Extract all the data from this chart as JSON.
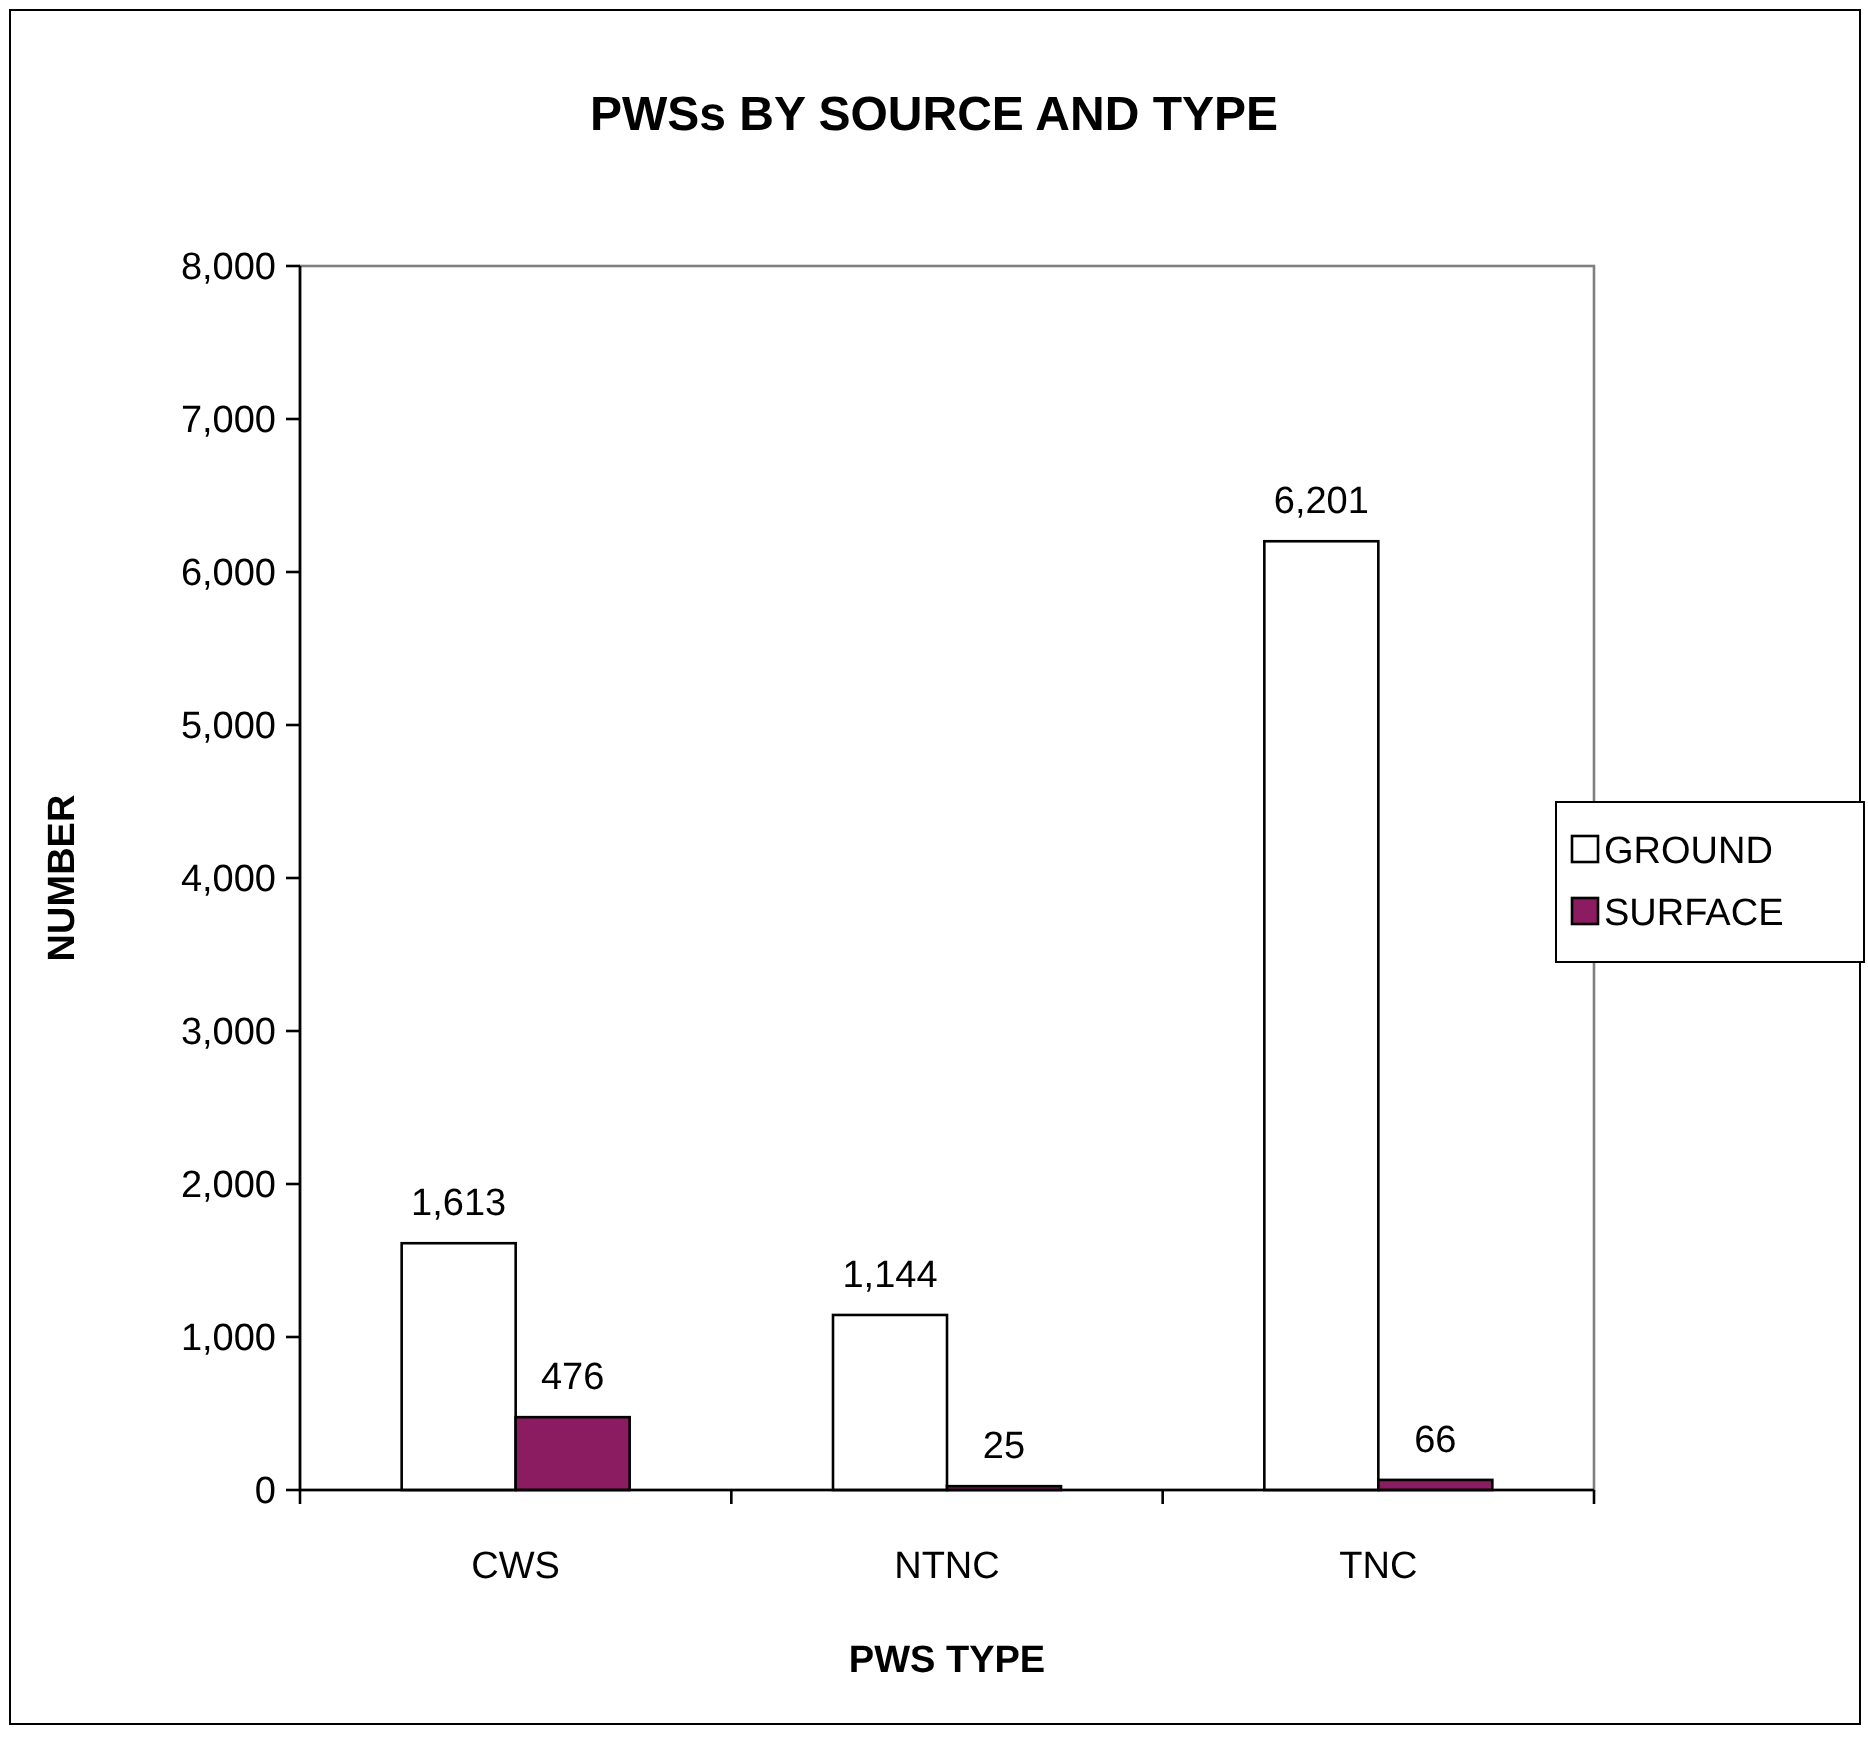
{
  "chart_data": {
    "type": "bar",
    "title": "PWSs BY SOURCE AND TYPE",
    "xlabel": "PWS TYPE",
    "ylabel": "NUMBER",
    "categories": [
      "CWS",
      "NTNC",
      "TNC"
    ],
    "series": [
      {
        "name": "GROUND",
        "color": "#ffffff",
        "values": [
          1613,
          1144,
          6201
        ]
      },
      {
        "name": "SURFACE",
        "color": "#8b1c62",
        "values": [
          476,
          25,
          66
        ]
      }
    ],
    "ylim": [
      0,
      8000
    ],
    "yticks": [
      {
        "value": 0,
        "label": "0"
      },
      {
        "value": 1000,
        "label": "1,000"
      },
      {
        "value": 2000,
        "label": "2,000"
      },
      {
        "value": 3000,
        "label": "3,000"
      },
      {
        "value": 4000,
        "label": "4,000"
      },
      {
        "value": 5000,
        "label": "5,000"
      },
      {
        "value": 6000,
        "label": "6,000"
      },
      {
        "value": 7000,
        "label": "7,000"
      },
      {
        "value": 8000,
        "label": "8,000"
      }
    ],
    "value_labels": [
      [
        "1,613",
        "1,144",
        "6,201"
      ],
      [
        "476",
        "25",
        "66"
      ]
    ],
    "legend": "right",
    "grid": false
  }
}
